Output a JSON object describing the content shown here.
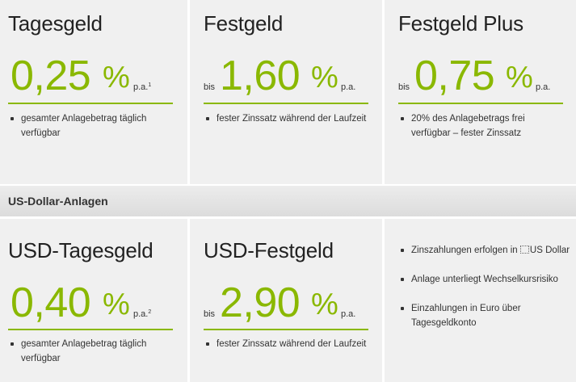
{
  "cards_top": [
    {
      "title": "Tagesgeld",
      "prefix": "",
      "rate": "0,25",
      "percent": "%",
      "pa": "p.a.",
      "footnote": "1",
      "bullets": [
        "gesamter Anlagebetrag täglich verfügbar"
      ]
    },
    {
      "title": "Festgeld",
      "prefix": "bis",
      "rate": "1,60",
      "percent": "%",
      "pa": "p.a.",
      "footnote": "",
      "bullets": [
        "fester Zinssatz während der Laufzeit"
      ]
    },
    {
      "title": "Festgeld Plus",
      "prefix": "bis",
      "rate": "0,75",
      "percent": "%",
      "pa": "p.a.",
      "footnote": "",
      "bullets": [
        "20% des Anlagebetrags frei verfügbar – fester Zinssatz"
      ]
    }
  ],
  "section": {
    "title": "US-Dollar-Anlagen"
  },
  "cards_bottom": [
    {
      "title": "USD-Tagesgeld",
      "prefix": "",
      "rate": "0,40",
      "percent": "%",
      "pa": "p.a.",
      "footnote": "2",
      "bullets": [
        "gesamter Anlagebetrag täglich verfügbar"
      ]
    },
    {
      "title": "USD-Festgeld",
      "prefix": "bis",
      "rate": "2,90",
      "percent": "%",
      "pa": "p.a.",
      "footnote": "",
      "bullets": [
        "fester Zinssatz während der Laufzeit"
      ]
    }
  ],
  "info_panel": {
    "bullets": [
      {
        "pre": "Zinszahlungen erfolgen in ",
        "icon": "flag-icon",
        "post": "US Dollar"
      },
      {
        "pre": "Anlage unterliegt Wechselkursrisiko",
        "icon": "",
        "post": ""
      },
      {
        "pre": "Einzahlungen in Euro über Tagesgeldkonto",
        "icon": "",
        "post": ""
      }
    ]
  },
  "colors": {
    "accent": "#8ab800",
    "card_bg": "#f0f0f0",
    "text": "#333333"
  }
}
